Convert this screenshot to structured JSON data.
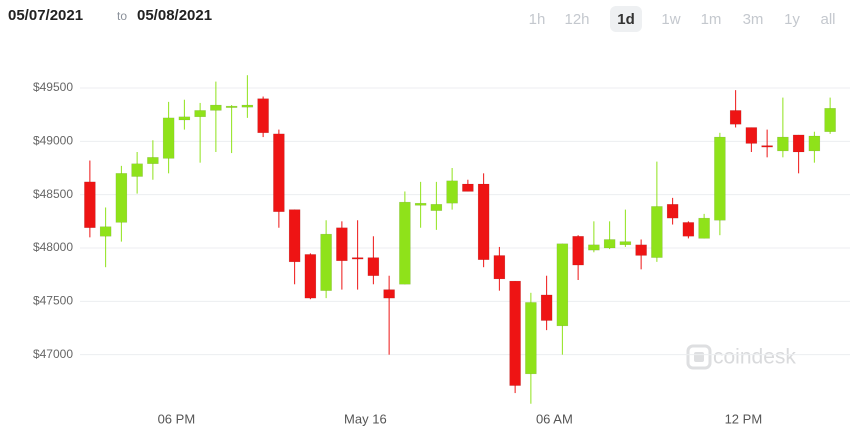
{
  "header": {
    "from": "05/07/2021",
    "separator": "to",
    "to": "05/08/2021",
    "ranges": [
      "1h",
      "12h",
      "1d",
      "1w",
      "1m",
      "3m",
      "1y",
      "all"
    ],
    "active_range": "1d"
  },
  "watermark": "coindesk",
  "chart_data": {
    "type": "candlestick",
    "categories": [
      null,
      null,
      null,
      null,
      null,
      null,
      "06 PM",
      null,
      null,
      null,
      null,
      null,
      null,
      null,
      null,
      null,
      null,
      null,
      "May 16",
      null,
      null,
      null,
      null,
      null,
      null,
      null,
      null,
      null,
      null,
      null,
      "06 AM",
      null,
      null,
      null,
      null,
      null,
      null,
      null,
      null,
      null,
      null,
      null,
      "12 PM",
      null,
      null,
      null,
      null,
      null
    ],
    "open": [
      48620,
      48110,
      48240,
      48670,
      48790,
      48840,
      49200,
      49230,
      49290,
      49320,
      49320,
      49400,
      49070,
      48360,
      47940,
      47600,
      48190,
      47910,
      47910,
      47610,
      47660,
      48400,
      48350,
      48420,
      48600,
      48600,
      47930,
      47690,
      46820,
      47560,
      47270,
      48110,
      47980,
      48000,
      48030,
      48030,
      47910,
      48410,
      48240,
      48090,
      48260,
      49290,
      49130,
      48960,
      48910,
      49060,
      48910,
      49090
    ],
    "high": [
      48820,
      48380,
      48770,
      48900,
      49010,
      49370,
      49390,
      49360,
      49560,
      49340,
      49620,
      49420,
      49110,
      48360,
      47950,
      48260,
      48250,
      48260,
      48110,
      47740,
      48530,
      48620,
      48620,
      48750,
      48640,
      48700,
      48010,
      47690,
      47580,
      47740,
      48040,
      48120,
      48250,
      48250,
      48360,
      48080,
      48810,
      48470,
      48250,
      48320,
      49080,
      49480,
      49130,
      49110,
      49410,
      49060,
      49090,
      49410
    ],
    "low": [
      48100,
      47820,
      48060,
      48510,
      48640,
      48700,
      49110,
      48800,
      48900,
      48890,
      49220,
      49040,
      48190,
      47660,
      47520,
      47530,
      47610,
      47610,
      47660,
      47000,
      47660,
      48190,
      48170,
      48360,
      48530,
      47820,
      47600,
      46640,
      46540,
      47230,
      47000,
      47700,
      47960,
      47990,
      48010,
      47800,
      47870,
      48220,
      48090,
      48090,
      48120,
      49130,
      48900,
      48850,
      48850,
      48700,
      48800,
      49070
    ],
    "close": [
      48190,
      48200,
      48700,
      48790,
      48850,
      49220,
      49230,
      49290,
      49340,
      49330,
      49340,
      49080,
      48340,
      47870,
      47530,
      48130,
      47880,
      47900,
      47740,
      47530,
      48430,
      48420,
      48410,
      48630,
      48530,
      47890,
      47710,
      46710,
      47490,
      47320,
      48040,
      47840,
      48030,
      48080,
      48060,
      47930,
      48390,
      48280,
      48110,
      48280,
      49040,
      49160,
      48980,
      48950,
      49040,
      48900,
      49050,
      49310
    ],
    "up_color": "#8fe21a",
    "down_color": "#ee1414",
    "ylim": [
      46500,
      49800
    ],
    "yticks": [
      {
        "value": 47000,
        "label": "$47000"
      },
      {
        "value": 47500,
        "label": "$47500"
      },
      {
        "value": 48000,
        "label": "$48000"
      },
      {
        "value": 48500,
        "label": "$48500"
      },
      {
        "value": 49000,
        "label": "$49000"
      },
      {
        "value": 49500,
        "label": "$49500"
      }
    ],
    "grid": true
  }
}
